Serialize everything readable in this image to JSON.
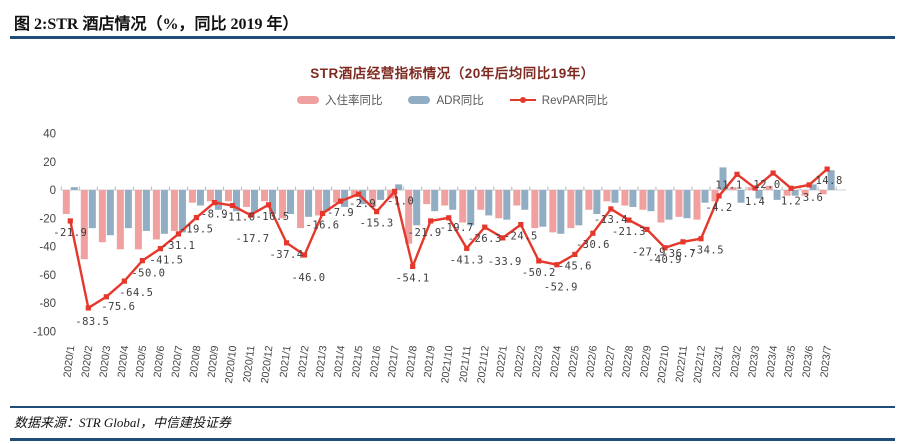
{
  "header": {
    "figure_label": "图 2:STR 酒店情况（%，同比 2019 年）"
  },
  "footer": {
    "source": "数据来源：STR Global，中信建投证券"
  },
  "chart_data": {
    "type": "bar",
    "subtype": "grouped-bars-with-line",
    "title": "STR酒店经营指标情况（20年后均同比19年）",
    "legend_position": "top",
    "grid": false,
    "ylim": [
      -100,
      40
    ],
    "yticks": [
      40,
      20,
      0,
      -20,
      -40,
      -60,
      -80,
      -100
    ],
    "xlabel": "",
    "ylabel": "",
    "categories": [
      "2020/1",
      "2020/2",
      "2020/3",
      "2020/4",
      "2020/5",
      "2020/6",
      "2020/7",
      "2020/8",
      "2020/9",
      "2020/10",
      "2020/11",
      "2020/12",
      "2021/1",
      "2021/2",
      "2021/3",
      "2021/4",
      "2021/5",
      "2021/6",
      "2021/7",
      "2021/8",
      "2021/9",
      "2021/10",
      "2021/11",
      "2021/12",
      "2022/1",
      "2022/2",
      "2022/3",
      "2022/4",
      "2022/5",
      "2022/6",
      "2022/7",
      "2022/8",
      "2022/9",
      "2022/10",
      "2022/11",
      "2022/12",
      "2023/1",
      "2023/2",
      "2023/3",
      "2023/4",
      "2023/5",
      "2023/6",
      "2023/7"
    ],
    "series": [
      {
        "name": "入住率同比",
        "type": "bar",
        "color": "#F1A0A0",
        "values": [
          -17,
          -49,
          -37,
          -42,
          -42,
          -35,
          -29,
          -9,
          -8,
          -8,
          -12,
          -8,
          -20,
          -27,
          -18,
          -9,
          -5,
          -12,
          -6,
          -38,
          -10,
          -11,
          -23,
          -14,
          -20,
          -11,
          -27,
          -30,
          -27,
          -14,
          -8,
          -11,
          -14,
          -23,
          -19,
          -21,
          -8,
          2,
          2,
          3,
          -4,
          -4,
          -3
        ]
      },
      {
        "name": "ADR同比",
        "type": "bar",
        "color": "#90ADC3",
        "values": [
          2,
          -27,
          -32,
          -27,
          -29,
          -31,
          -30,
          -11,
          -14,
          -15,
          -16,
          -17,
          -17,
          -19,
          -15,
          -12,
          -10,
          -7,
          4,
          -25,
          -15,
          -14,
          -25,
          -18,
          -21,
          -14,
          -26,
          -31,
          -25,
          -17,
          -9,
          -12,
          -15,
          -21,
          -20,
          -9,
          16,
          -9,
          -6,
          -7,
          -4,
          4,
          14
        ]
      },
      {
        "name": "RevPAR同比",
        "type": "line",
        "color": "#E5372B",
        "data_labels": true,
        "values": [
          -21.9,
          -83.5,
          -75.6,
          -64.5,
          -50.0,
          -41.5,
          -31.1,
          -19.5,
          -8.9,
          -11.0,
          -17.7,
          -10.5,
          -37.4,
          -46.0,
          -16.6,
          -7.9,
          -2.9,
          -15.3,
          -1.0,
          -54.1,
          -21.9,
          -19.7,
          -41.3,
          -26.3,
          -33.9,
          -24.5,
          -50.2,
          -52.9,
          -45.6,
          -30.6,
          -13.4,
          -21.3,
          -27.9,
          -40.9,
          -36.7,
          -34.5,
          -4.2,
          11.1,
          1.4,
          12.0,
          1.2,
          3.6,
          14.8
        ]
      }
    ]
  },
  "colors": {
    "rule_blue": "#1F4E79",
    "title_red": "#7E2A20",
    "axis_line": "#CFCFCF",
    "tick_label": "#444444",
    "data_label": "#3D3D3D"
  }
}
